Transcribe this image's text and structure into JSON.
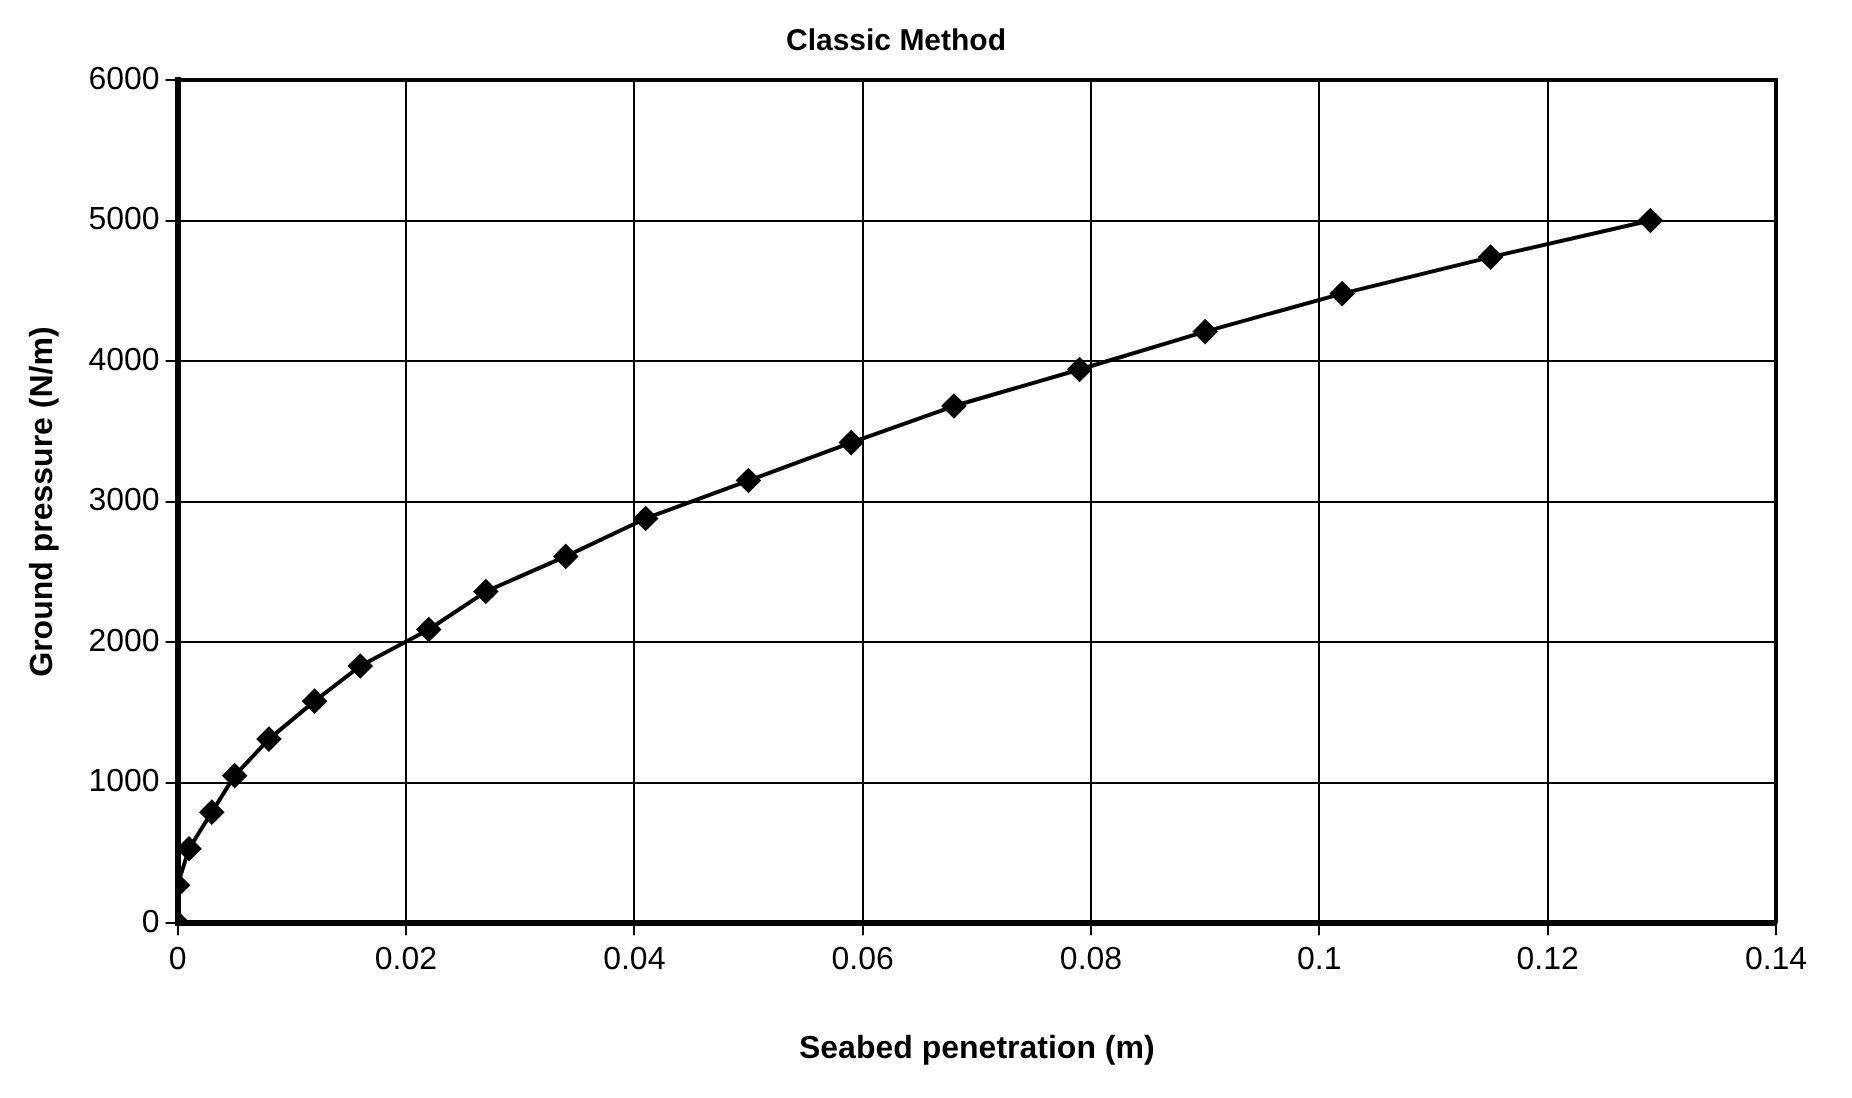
{
  "chart_data": {
    "type": "line",
    "title": "Classic Method",
    "xlabel": "Seabed penetration (m)",
    "ylabel": "Ground pressure (N/m)",
    "x": [
      0,
      0,
      0.001,
      0.003,
      0.005,
      0.008,
      0.012,
      0.016,
      0.022,
      0.027,
      0.034,
      0.041,
      0.05,
      0.059,
      0.068,
      0.079,
      0.09,
      0.102,
      0.115,
      0.129
    ],
    "series": [
      {
        "color": "#000000",
        "values": [
          0,
          270,
          530,
          790,
          1050,
          1310,
          1580,
          1830,
          2090,
          2360,
          2610,
          2880,
          3150,
          3420,
          3680,
          3940,
          4210,
          4480,
          4740,
          5000
        ]
      }
    ],
    "xlim": [
      0,
      0.14
    ],
    "xticks": [
      0,
      0.02,
      0.04,
      0.06,
      0.08,
      0.1,
      0.12,
      0.14
    ],
    "ylim": [
      0,
      6000
    ],
    "yticks": [
      0,
      1000,
      2000,
      3000,
      4000,
      5000,
      6000
    ],
    "grid": true,
    "legend": false,
    "marker": "diamond",
    "line_style": "solid"
  }
}
